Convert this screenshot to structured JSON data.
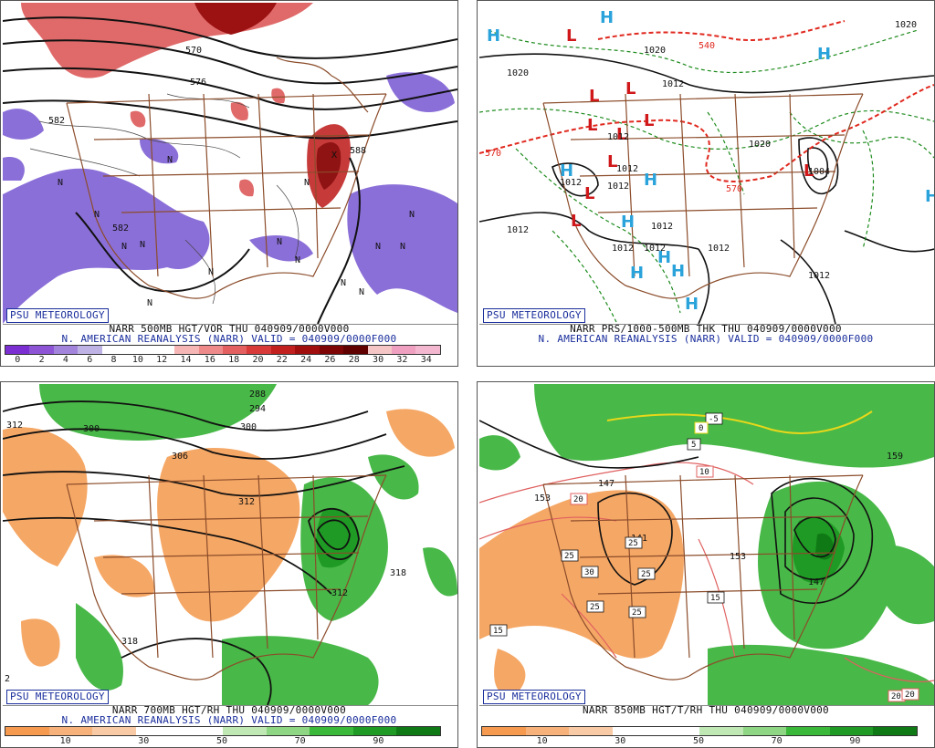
{
  "branding": "PSU METEOROLOGY",
  "panels": [
    {
      "id": "p500",
      "line1": "NARR 500MB HGT/VOR THU 040909/0000V000",
      "line2": "N. AMERICAN REANALYSIS (NARR) VALID = 040909/0000F000",
      "colorbar_ticks": [
        "0",
        "2",
        "4",
        "6",
        "8",
        "10",
        "12",
        "14",
        "16",
        "18",
        "20",
        "22",
        "24",
        "26",
        "28",
        "30",
        "32",
        "34"
      ],
      "colorbar_colors": [
        "#7b2fd2",
        "#8d55d6",
        "#a384dc",
        "#bfb3e6",
        "#ffffff",
        "#ffffff",
        "#ffffff",
        "#f6b6b6",
        "#ee8a8a",
        "#e46060",
        "#d83a3a",
        "#c21f1f",
        "#a10e0e",
        "#7e0505",
        "#600000",
        "#f5c6c6",
        "#ef9fbf",
        "#f3b8d0"
      ],
      "contour_labels": [
        "570",
        "576",
        "582",
        "588",
        "582"
      ],
      "vort_labels": [
        "N",
        "N",
        "N",
        "N",
        "N",
        "N",
        "N",
        "N",
        "N",
        "N",
        "N",
        "N",
        "N",
        "N",
        "X",
        "N"
      ]
    },
    {
      "id": "pprs",
      "line1": "NARR PRS/1000-500MB THK THU 040909/0000V000",
      "line2": "N. AMERICAN REANALYSIS (NARR) VALID = 040909/0000F000",
      "isobar_labels": [
        "1020",
        "1020",
        "1012",
        "1020",
        "1012",
        "1012",
        "1012",
        "1012",
        "1012",
        "1012",
        "1012",
        "1004",
        "1012",
        "1012",
        "1012",
        "1020"
      ],
      "thickness_labels": [
        "570",
        "570",
        "540"
      ],
      "low_symbol": "L",
      "high_symbol": "H"
    },
    {
      "id": "p700",
      "line1": "NARR 700MB HGT/RH THU 040909/0000V000",
      "line2": "N. AMERICAN REANALYSIS (NARR) VALID = 040909/0000F000",
      "colorbar_ticks": [
        "10",
        "30",
        "50",
        "70",
        "90"
      ],
      "colorbar_colors": [
        "#f59a4e",
        "#f6b27a",
        "#f8cba6",
        "#ffffff",
        "#ffffff",
        "#bfe8b5",
        "#8fd684",
        "#39b83a",
        "#1f9a24",
        "#0f7a15"
      ],
      "contour_labels": [
        "312",
        "300",
        "306",
        "300",
        "294",
        "288",
        "312",
        "318",
        "312",
        "318",
        "2"
      ]
    },
    {
      "id": "p850",
      "line1": "NARR 850MB HGT/T/RH THU 040909/0000V000",
      "line2": "",
      "colorbar_ticks": [
        "10",
        "30",
        "50",
        "70",
        "90"
      ],
      "colorbar_colors": [
        "#f59a4e",
        "#f6b27a",
        "#f8cba6",
        "#ffffff",
        "#ffffff",
        "#bfe8b5",
        "#8fd684",
        "#39b83a",
        "#1f9a24",
        "#0f7a15"
      ],
      "contour_labels": [
        "153",
        "147",
        "153",
        "147",
        "141",
        "159"
      ],
      "temp_labels": [
        "-5",
        "0",
        "5",
        "10",
        "20",
        "25",
        "25",
        "25",
        "25",
        "30",
        "25",
        "15",
        "15",
        "20",
        "20"
      ]
    }
  ]
}
